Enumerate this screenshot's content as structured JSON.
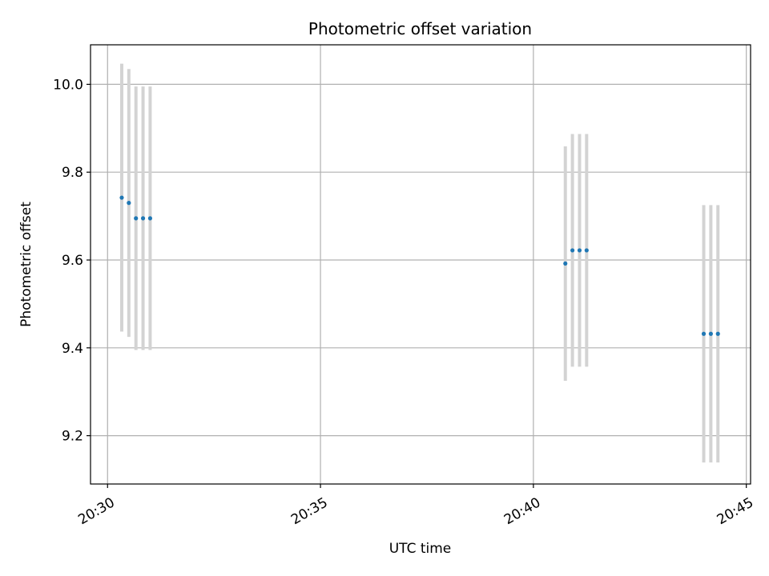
{
  "chart_data": {
    "type": "scatter",
    "title": "Photometric offset variation",
    "xlabel": "UTC time",
    "ylabel": "Photometric offset",
    "x_axis": {
      "kind": "time",
      "range": [
        "20:29:36",
        "20:45:06"
      ],
      "ticks": [
        "20:30",
        "20:35",
        "20:40",
        "20:45"
      ]
    },
    "y_axis": {
      "range": [
        9.09,
        10.09
      ],
      "ticks": [
        "9.2",
        "9.4",
        "9.6",
        "9.8",
        "10.0"
      ]
    },
    "grid": true,
    "colors": {
      "points": "#1f77b4",
      "error_bars": "#d3d3d3",
      "grid": "#b0b0b0"
    },
    "points": [
      {
        "time": "20:30:20",
        "offset": 9.742,
        "err": 0.305
      },
      {
        "time": "20:30:30",
        "offset": 9.73,
        "err": 0.305
      },
      {
        "time": "20:30:40",
        "offset": 9.695,
        "err": 0.3
      },
      {
        "time": "20:30:50",
        "offset": 9.695,
        "err": 0.3
      },
      {
        "time": "20:31:00",
        "offset": 9.695,
        "err": 0.3
      },
      {
        "time": "20:40:45",
        "offset": 9.592,
        "err": 0.267
      },
      {
        "time": "20:40:55",
        "offset": 9.622,
        "err": 0.265
      },
      {
        "time": "20:41:05",
        "offset": 9.622,
        "err": 0.265
      },
      {
        "time": "20:41:15",
        "offset": 9.622,
        "err": 0.265
      },
      {
        "time": "20:44:00",
        "offset": 9.432,
        "err": 0.293
      },
      {
        "time": "20:44:10",
        "offset": 9.432,
        "err": 0.293
      },
      {
        "time": "20:44:20",
        "offset": 9.432,
        "err": 0.293
      }
    ]
  }
}
